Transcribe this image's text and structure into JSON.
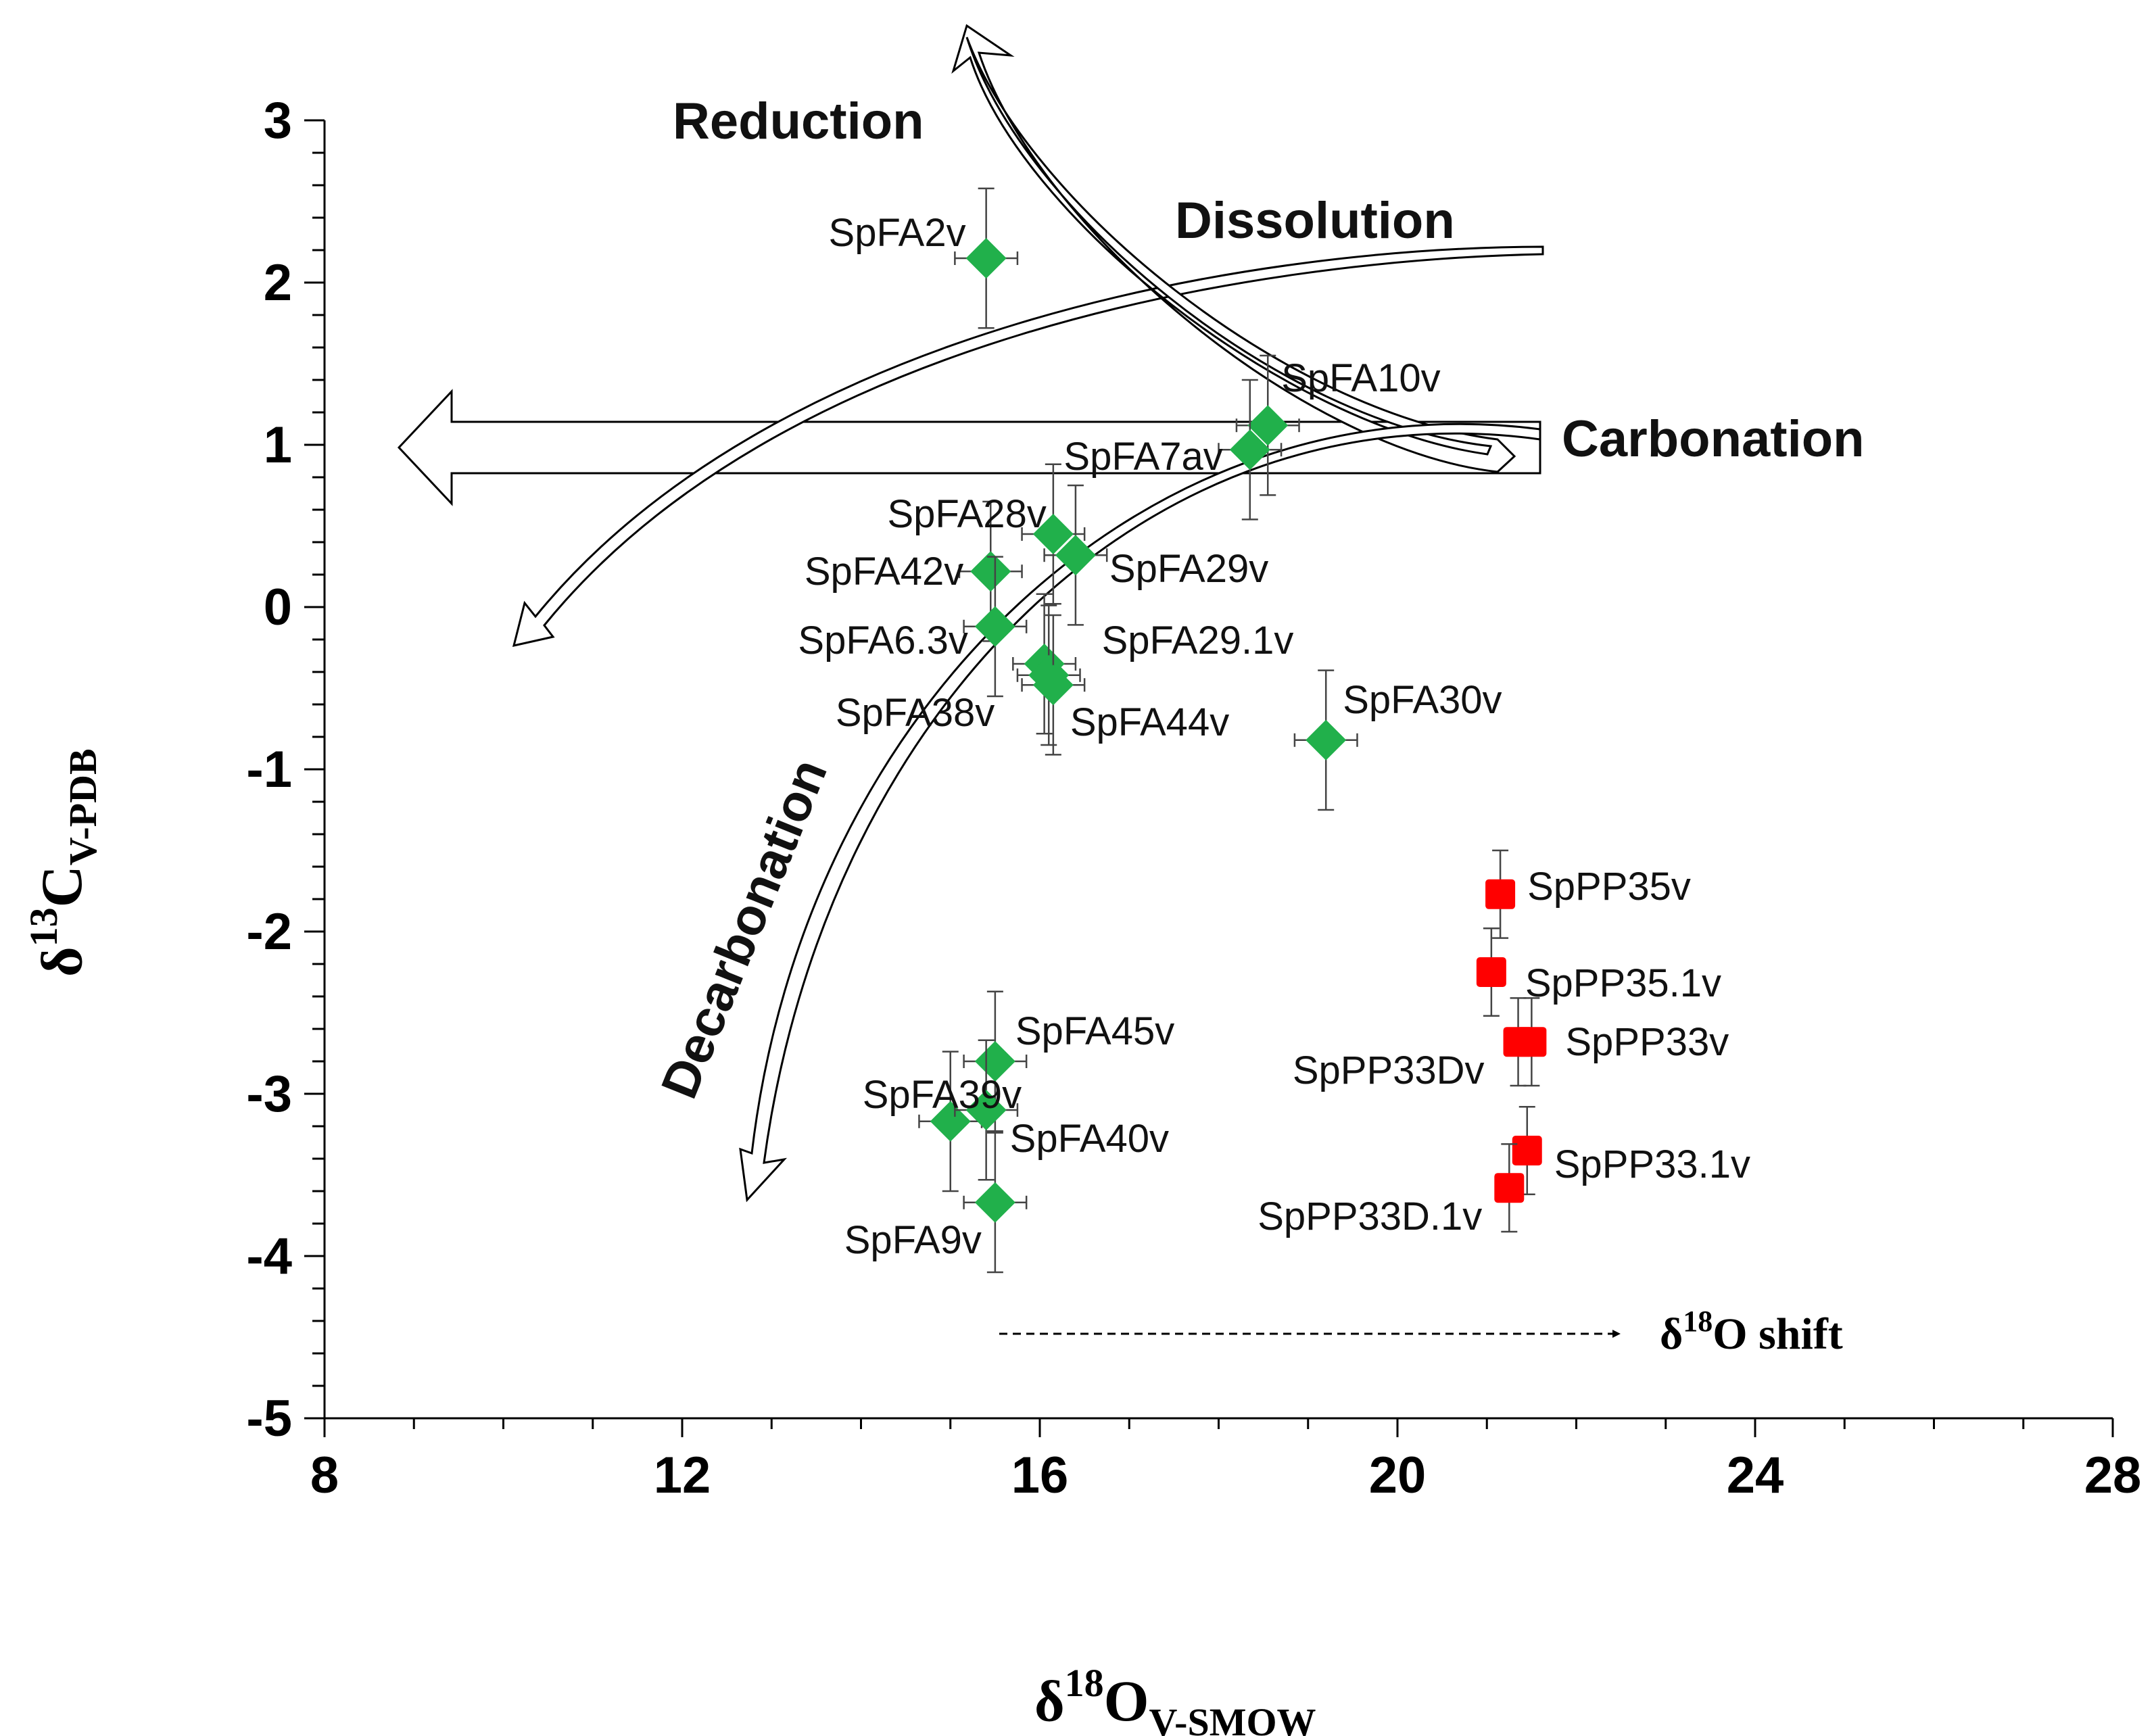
{
  "chart_data": {
    "type": "scatter",
    "x_axis": {
      "min": 8,
      "max": 28,
      "ticks": [
        8,
        12,
        16,
        20,
        24,
        28
      ],
      "title": {
        "symbol": "δ",
        "sup": "18",
        "main": "O",
        "sub": "V-SMOW"
      }
    },
    "y_axis": {
      "min": -5,
      "max": 3,
      "ticks": [
        -5,
        -4,
        -3,
        -2,
        -1,
        0,
        1,
        2,
        3
      ],
      "tick_labels": [
        "-5",
        "-4",
        "-3",
        "-2",
        "-1",
        "0",
        "1",
        "2",
        "3"
      ],
      "title": {
        "symbol": "δ",
        "sup": "13",
        "main": "C",
        "sub": "V-PDB"
      }
    },
    "series": [
      {
        "name": "SpFA",
        "marker": "diamond",
        "color": "#21b04b",
        "points": [
          {
            "label": "SpFA2v",
            "x": 15.4,
            "y": 2.15,
            "xerr": 0.35,
            "yerr": 0.43
          },
          {
            "label": "SpFA10v",
            "x": 18.55,
            "y": 1.12,
            "xerr": 0.35,
            "yerr": 0.43
          },
          {
            "label": "SpFA7av",
            "x": 18.35,
            "y": 0.97,
            "xerr": 0.35,
            "yerr": 0.43
          },
          {
            "label": "SpFA28v",
            "x": 16.15,
            "y": 0.45,
            "xerr": 0.35,
            "yerr": 0.43
          },
          {
            "label": "SpFA29v",
            "x": 16.4,
            "y": 0.32,
            "xerr": 0.35,
            "yerr": 0.43
          },
          {
            "label": "SpFA42v",
            "x": 15.45,
            "y": 0.22,
            "xerr": 0.35,
            "yerr": 0.43
          },
          {
            "label": "SpFA6.3v",
            "x": 15.5,
            "y": -0.12,
            "xerr": 0.35,
            "yerr": 0.43
          },
          {
            "label": "SpFA29.1v",
            "x": 16.05,
            "y": -0.35,
            "xerr": 0.35,
            "yerr": 0.43
          },
          {
            "label": "SpFA38v",
            "x": 16.1,
            "y": -0.42,
            "xerr": 0.35,
            "yerr": 0.43
          },
          {
            "label": "SpFA44v",
            "x": 16.15,
            "y": -0.48,
            "xerr": 0.35,
            "yerr": 0.43
          },
          {
            "label": "SpFA30v",
            "x": 19.2,
            "y": -0.82,
            "xerr": 0.35,
            "yerr": 0.43
          },
          {
            "label": "SpFA45v",
            "x": 15.5,
            "y": -2.8,
            "xerr": 0.35,
            "yerr": 0.43
          },
          {
            "label": "SpFA39v",
            "x": 15.0,
            "y": -3.17,
            "xerr": 0.35,
            "yerr": 0.43
          },
          {
            "label": "SpFA40v",
            "x": 15.4,
            "y": -3.1,
            "xerr": 0.35,
            "yerr": 0.43
          },
          {
            "label": "SpFA9v",
            "x": 15.5,
            "y": -3.67,
            "xerr": 0.35,
            "yerr": 0.43
          }
        ]
      },
      {
        "name": "SpPP",
        "marker": "square",
        "color": "#ff0000",
        "points": [
          {
            "label": "SpPP35v",
            "x": 21.15,
            "y": -1.77,
            "xerr": 0.15,
            "yerr": 0.27
          },
          {
            "label": "SpPP35.1v",
            "x": 21.05,
            "y": -2.25,
            "xerr": 0.15,
            "yerr": 0.27
          },
          {
            "label": "SpPP33Dv",
            "x": 21.35,
            "y": -2.68,
            "xerr": 0.15,
            "yerr": 0.27
          },
          {
            "label": "SpPP33v",
            "x": 21.5,
            "y": -2.68,
            "xerr": 0.15,
            "yerr": 0.27
          },
          {
            "label": "SpPP33.1v",
            "x": 21.45,
            "y": -3.35,
            "xerr": 0.15,
            "yerr": 0.27
          },
          {
            "label": "SpPP33D.1v",
            "x": 21.25,
            "y": -3.58,
            "xerr": 0.15,
            "yerr": 0.27
          }
        ]
      }
    ],
    "annotations": {
      "reduction": "Reduction",
      "dissolution": "Dissolution",
      "carbonation": "Carbonation",
      "decarbonation": "Decarbonation",
      "shift": {
        "symbol": "δ",
        "sup": "18",
        "text": "O shift"
      }
    }
  }
}
